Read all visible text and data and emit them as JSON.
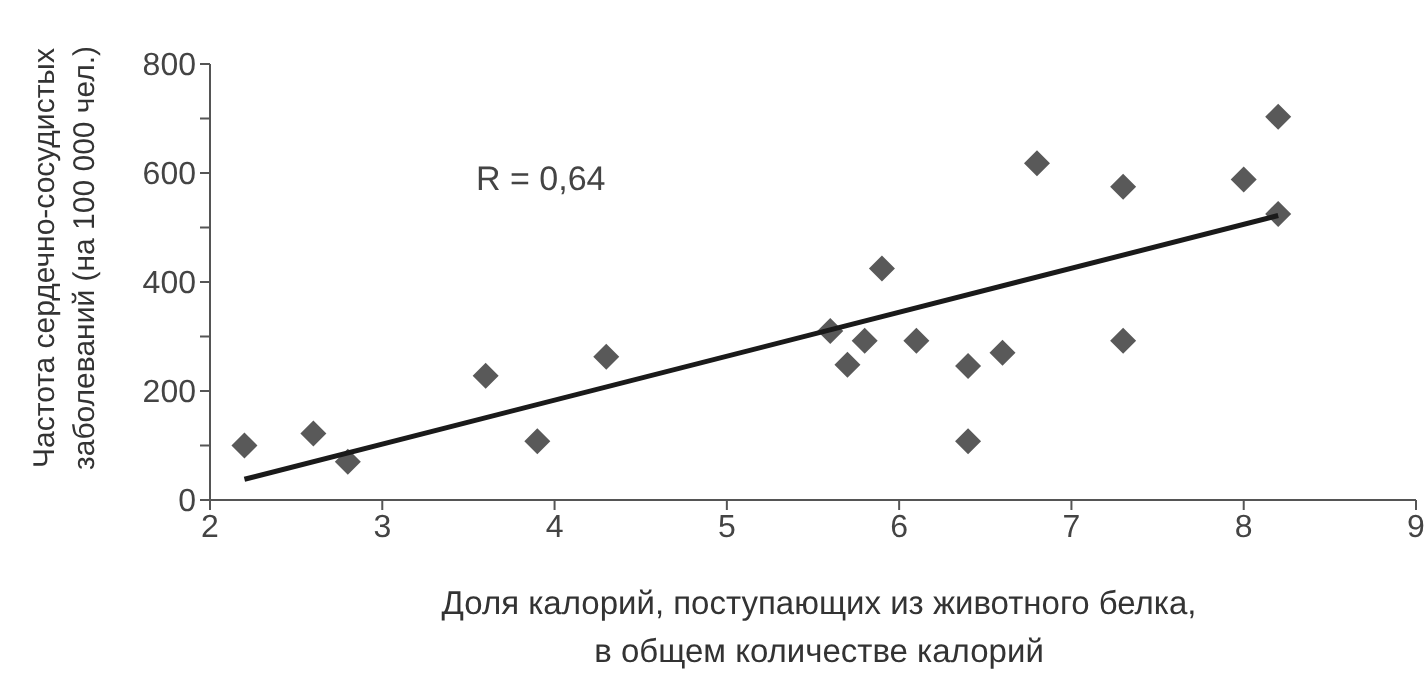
{
  "chart_data": {
    "type": "scatter",
    "xlabel": "Доля калорий, поступающих из животного белка, в общем количестве калорий",
    "ylabel": "Частота сердечно-сосудистых заболеваний (на 100 000 чел.)",
    "annotations": [
      "R = 0,64"
    ],
    "xlim": [
      2,
      9
    ],
    "xticks": [
      2,
      3,
      4,
      5,
      6,
      7,
      8,
      9
    ],
    "ylim": [
      0,
      800
    ],
    "yticks": [
      0,
      {
        "value": 100,
        "label": null
      },
      200,
      {
        "value": 300,
        "label": null
      },
      400,
      {
        "value": 500,
        "label": null
      },
      600,
      {
        "value": 700,
        "label": null
      },
      800
    ],
    "grid": false,
    "legend": false,
    "series": [
      {
        "marker": "diamond",
        "color": "#595959",
        "x": [
          2.2,
          2.6,
          2.8,
          3.6,
          3.9,
          4.3,
          5.6,
          5.7,
          5.8,
          5.9,
          6.1,
          6.4,
          6.4,
          6.6,
          6.8,
          7.3,
          7.3,
          8.0,
          8.2,
          8.2
        ],
        "values": [
          100,
          122,
          70,
          228,
          108,
          263,
          310,
          248,
          292,
          425,
          292,
          246,
          108,
          270,
          618,
          575,
          292,
          588,
          703,
          525
        ]
      },
      {
        "type": "line",
        "marker": "none",
        "color": "#1a1a1a",
        "x": [
          2.2,
          8.2
        ],
        "values": [
          38,
          522
        ]
      }
    ]
  }
}
